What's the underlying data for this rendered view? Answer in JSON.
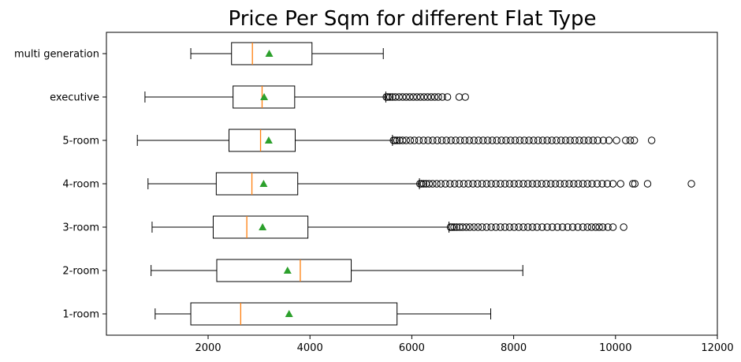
{
  "chart_data": {
    "type": "boxplot",
    "orientation": "horizontal",
    "title": "Price Per Sqm for different Flat Type",
    "xlabel": "",
    "ylabel": "",
    "xlim": [
      0,
      12000
    ],
    "xticks": [
      2000,
      4000,
      6000,
      8000,
      10000,
      12000
    ],
    "xtick_labels": [
      "2000",
      "4000",
      "6000",
      "8000",
      "10000",
      "12000"
    ],
    "grid": false,
    "legend": "none",
    "colors": {
      "box": "#000000",
      "median": "#ff7f0e",
      "mean": "#2ca02c",
      "flier": "#000000"
    },
    "categories": [
      "1-room",
      "2-room",
      "3-room",
      "4-room",
      "5-room",
      "executive",
      "multi generation"
    ],
    "boxes": [
      {
        "name": "1-room",
        "whislo": 960,
        "q1": 1660,
        "med": 2640,
        "mean": 3590,
        "q3": 5710,
        "whishi": 7550,
        "fliers": []
      },
      {
        "name": "2-room",
        "whislo": 880,
        "q1": 2170,
        "med": 3810,
        "mean": 3560,
        "q3": 4810,
        "whishi": 8180,
        "fliers": []
      },
      {
        "name": "3-room",
        "whislo": 900,
        "q1": 2100,
        "med": 2760,
        "mean": 3070,
        "q3": 3960,
        "whishi": 6730,
        "fliers": [
          6760,
          6790,
          6830,
          6880,
          6940,
          7000,
          7070,
          7140,
          7220,
          7300,
          7380,
          7470,
          7560,
          7650,
          7740,
          7830,
          7920,
          8010,
          8100,
          8190,
          8280,
          8370,
          8460,
          8560,
          8660,
          8760,
          8860,
          8960,
          9060,
          9160,
          9260,
          9360,
          9450,
          9530,
          9610,
          9680,
          9750,
          9850,
          9950,
          10160
        ]
      },
      {
        "name": "4-room",
        "whislo": 820,
        "q1": 2160,
        "med": 2860,
        "mean": 3090,
        "q3": 3760,
        "whishi": 6150,
        "fliers": [
          6160,
          6190,
          6230,
          6280,
          6340,
          6410,
          6490,
          6570,
          6660,
          6750,
          6840,
          6930,
          7020,
          7110,
          7200,
          7290,
          7380,
          7470,
          7560,
          7650,
          7740,
          7830,
          7920,
          8010,
          8100,
          8190,
          8280,
          8370,
          8460,
          8550,
          8640,
          8730,
          8820,
          8910,
          9000,
          9090,
          9180,
          9270,
          9360,
          9450,
          9540,
          9640,
          9740,
          9840,
          9950,
          10100,
          10340,
          10380,
          10630,
          11490
        ]
      },
      {
        "name": "5-room",
        "whislo": 610,
        "q1": 2410,
        "med": 3030,
        "mean": 3190,
        "q3": 3710,
        "whishi": 5620,
        "fliers": [
          5640,
          5670,
          5710,
          5760,
          5820,
          5890,
          5970,
          6050,
          6140,
          6230,
          6320,
          6410,
          6500,
          6590,
          6680,
          6770,
          6860,
          6950,
          7040,
          7130,
          7220,
          7310,
          7400,
          7490,
          7580,
          7670,
          7760,
          7850,
          7940,
          8030,
          8120,
          8210,
          8300,
          8390,
          8480,
          8570,
          8660,
          8750,
          8840,
          8930,
          9020,
          9110,
          9200,
          9290,
          9380,
          9470,
          9560,
          9650,
          9760,
          9870,
          10020,
          10200,
          10290,
          10370,
          10710
        ]
      },
      {
        "name": "executive",
        "whislo": 760,
        "q1": 2490,
        "med": 3060,
        "mean": 3100,
        "q3": 3700,
        "whishi": 5490,
        "fliers": [
          5500,
          5530,
          5570,
          5620,
          5680,
          5750,
          5820,
          5890,
          5960,
          6030,
          6100,
          6170,
          6240,
          6310,
          6380,
          6450,
          6520,
          6600,
          6700,
          6930,
          7050
        ]
      },
      {
        "name": "multi generation",
        "whislo": 1660,
        "q1": 2460,
        "med": 2870,
        "mean": 3200,
        "q3": 4040,
        "whishi": 5440,
        "fliers": []
      }
    ]
  }
}
